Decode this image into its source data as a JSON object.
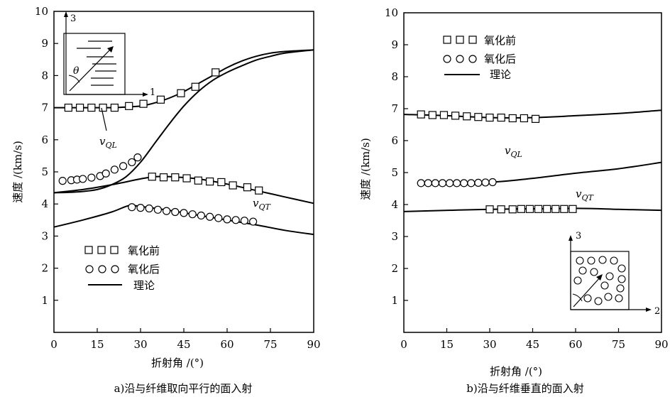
{
  "chart_data": [
    {
      "type": "scatter",
      "caption": "a)沿与纤维取向平行的面入射",
      "xlabel": "折射角 /(°)",
      "ylabel": "速度 /(km/s)",
      "xlim": [
        0,
        90
      ],
      "ylim": [
        0,
        10
      ],
      "x_ticks": [
        "0",
        "15",
        "30",
        "45",
        "60",
        "75",
        "90"
      ],
      "y_ticks": [
        "1",
        "2",
        "3",
        "4",
        "5",
        "6",
        "7",
        "8",
        "9",
        "10"
      ],
      "legend": {
        "placement": "bottom-left",
        "entries": [
          "氧化前",
          "氧化后",
          "理论"
        ]
      },
      "annotations": {
        "vQL": "v",
        "vQL_sub": "QL",
        "vQT": "v",
        "vQT_sub": "QT"
      },
      "inset": {
        "axis_vertical": "3",
        "axis_horizontal": "1",
        "angle": "θ"
      },
      "series": [
        {
          "name": "氧化前",
          "marker": "square",
          "points": [
            [
              5,
              7.0
            ],
            [
              9,
              7.0
            ],
            [
              13,
              7.0
            ],
            [
              17,
              7.0
            ],
            [
              21,
              7.0
            ],
            [
              26,
              7.05
            ],
            [
              31,
              7.12
            ],
            [
              37,
              7.25
            ],
            [
              44,
              7.45
            ],
            [
              49,
              7.65
            ],
            [
              56,
              8.1
            ]
          ]
        },
        {
          "name": "氧化前",
          "marker": "square",
          "points": [
            [
              34,
              4.85
            ],
            [
              38,
              4.83
            ],
            [
              42,
              4.83
            ],
            [
              46,
              4.8
            ],
            [
              50,
              4.73
            ],
            [
              54,
              4.7
            ],
            [
              58,
              4.68
            ],
            [
              62,
              4.58
            ],
            [
              67,
              4.52
            ],
            [
              71,
              4.42
            ]
          ]
        },
        {
          "name": "氧化后",
          "marker": "circle",
          "points": [
            [
              3,
              4.72
            ],
            [
              6,
              4.74
            ],
            [
              8,
              4.76
            ],
            [
              10,
              4.78
            ],
            [
              13,
              4.82
            ],
            [
              16,
              4.87
            ],
            [
              18,
              4.95
            ],
            [
              21,
              5.07
            ],
            [
              24,
              5.18
            ],
            [
              27,
              5.3
            ],
            [
              29,
              5.45
            ]
          ]
        },
        {
          "name": "氧化后",
          "marker": "circle",
          "points": [
            [
              27,
              3.9
            ],
            [
              30,
              3.88
            ],
            [
              33,
              3.86
            ],
            [
              36,
              3.82
            ],
            [
              39,
              3.78
            ],
            [
              42,
              3.75
            ],
            [
              45,
              3.72
            ],
            [
              48,
              3.68
            ],
            [
              51,
              3.64
            ],
            [
              54,
              3.6
            ],
            [
              57,
              3.56
            ],
            [
              60,
              3.52
            ],
            [
              63,
              3.5
            ],
            [
              66,
              3.48
            ],
            [
              69,
              3.45
            ]
          ]
        },
        {
          "name": "理论",
          "marker": "line",
          "points": [
            [
              0,
              7.0
            ],
            [
              10,
              7.0
            ],
            [
              20,
              7.0
            ],
            [
              25,
              7.02
            ],
            [
              30,
              7.05
            ],
            [
              35,
              7.15
            ],
            [
              40,
              7.3
            ],
            [
              45,
              7.5
            ],
            [
              50,
              7.75
            ],
            [
              55,
              8.0
            ],
            [
              60,
              8.25
            ],
            [
              65,
              8.45
            ],
            [
              70,
              8.6
            ],
            [
              75,
              8.7
            ],
            [
              80,
              8.75
            ],
            [
              90,
              8.8
            ]
          ]
        },
        {
          "name": "理论",
          "marker": "line",
          "points": [
            [
              0,
              4.35
            ],
            [
              5,
              4.36
            ],
            [
              10,
              4.39
            ],
            [
              15,
              4.45
            ],
            [
              20,
              4.6
            ],
            [
              25,
              4.85
            ],
            [
              30,
              5.3
            ],
            [
              35,
              5.9
            ],
            [
              40,
              6.5
            ],
            [
              45,
              7.05
            ],
            [
              50,
              7.5
            ],
            [
              55,
              7.85
            ],
            [
              60,
              8.1
            ],
            [
              65,
              8.3
            ],
            [
              70,
              8.48
            ],
            [
              75,
              8.6
            ],
            [
              80,
              8.7
            ],
            [
              90,
              8.8
            ]
          ]
        },
        {
          "name": "理论",
          "marker": "line",
          "points": [
            [
              0,
              4.35
            ],
            [
              10,
              4.45
            ],
            [
              20,
              4.6
            ],
            [
              30,
              4.78
            ],
            [
              35,
              4.85
            ],
            [
              40,
              4.85
            ],
            [
              50,
              4.78
            ],
            [
              60,
              4.62
            ],
            [
              70,
              4.42
            ],
            [
              80,
              4.22
            ],
            [
              90,
              4.02
            ]
          ]
        },
        {
          "name": "理论",
          "marker": "line",
          "points": [
            [
              0,
              3.28
            ],
            [
              10,
              3.5
            ],
            [
              20,
              3.75
            ],
            [
              26,
              3.95
            ],
            [
              30,
              3.92
            ],
            [
              40,
              3.8
            ],
            [
              50,
              3.65
            ],
            [
              60,
              3.5
            ],
            [
              70,
              3.35
            ],
            [
              80,
              3.18
            ],
            [
              90,
              3.05
            ]
          ]
        }
      ]
    },
    {
      "type": "scatter",
      "caption": "b)沿与纤维垂直的面入射",
      "xlabel": "折射角 /(°)",
      "ylabel": "速度 /(km/s)",
      "xlim": [
        0,
        90
      ],
      "ylim": [
        0,
        10
      ],
      "x_ticks": [
        "0",
        "15",
        "30",
        "45",
        "60",
        "75",
        "90"
      ],
      "y_ticks": [
        "1",
        "2",
        "3",
        "4",
        "5",
        "6",
        "7",
        "8",
        "9",
        "10"
      ],
      "legend": {
        "placement": "top-left",
        "entries": [
          "氧化前",
          "氧化后",
          "理论"
        ]
      },
      "annotations": {
        "vQL": "v",
        "vQL_sub": "QL",
        "vQT": "v",
        "vQT_sub": "QT"
      },
      "inset": {
        "axis_vertical": "3",
        "axis_horizontal": "2"
      },
      "series": [
        {
          "name": "氧化前",
          "marker": "square",
          "points": [
            [
              6,
              6.82
            ],
            [
              10,
              6.8
            ],
            [
              14,
              6.8
            ],
            [
              18,
              6.78
            ],
            [
              22,
              6.76
            ],
            [
              26,
              6.74
            ],
            [
              30,
              6.72
            ],
            [
              34,
              6.72
            ],
            [
              38,
              6.7
            ],
            [
              42,
              6.7
            ],
            [
              46,
              6.68
            ]
          ]
        },
        {
          "name": "氧化前",
          "marker": "square",
          "points": [
            [
              30,
              3.85
            ],
            [
              34,
              3.85
            ],
            [
              38,
              3.85
            ],
            [
              41,
              3.86
            ],
            [
              44,
              3.86
            ],
            [
              47,
              3.86
            ],
            [
              50,
              3.86
            ],
            [
              53,
              3.86
            ],
            [
              56,
              3.86
            ],
            [
              59,
              3.86
            ]
          ]
        },
        {
          "name": "氧化后",
          "marker": "circle",
          "points": [
            [
              6,
              4.67
            ],
            [
              8.5,
              4.67
            ],
            [
              11,
              4.67
            ],
            [
              13.5,
              4.67
            ],
            [
              16,
              4.67
            ],
            [
              18.5,
              4.67
            ],
            [
              21,
              4.67
            ],
            [
              23.5,
              4.67
            ],
            [
              26,
              4.68
            ],
            [
              28.5,
              4.69
            ],
            [
              31,
              4.7
            ]
          ]
        },
        {
          "name": "理论",
          "marker": "line",
          "points": [
            [
              0,
              6.82
            ],
            [
              15,
              6.78
            ],
            [
              30,
              6.72
            ],
            [
              45,
              6.72
            ],
            [
              60,
              6.78
            ],
            [
              75,
              6.85
            ],
            [
              90,
              6.95
            ]
          ]
        },
        {
          "name": "理论",
          "marker": "line",
          "points": [
            [
              5,
              4.67
            ],
            [
              30,
              4.7
            ],
            [
              45,
              4.82
            ],
            [
              60,
              4.98
            ],
            [
              75,
              5.12
            ],
            [
              90,
              5.32
            ]
          ]
        },
        {
          "name": "理论",
          "marker": "line",
          "points": [
            [
              0,
              3.78
            ],
            [
              30,
              3.85
            ],
            [
              60,
              3.88
            ],
            [
              75,
              3.85
            ],
            [
              90,
              3.82
            ]
          ]
        }
      ]
    }
  ]
}
